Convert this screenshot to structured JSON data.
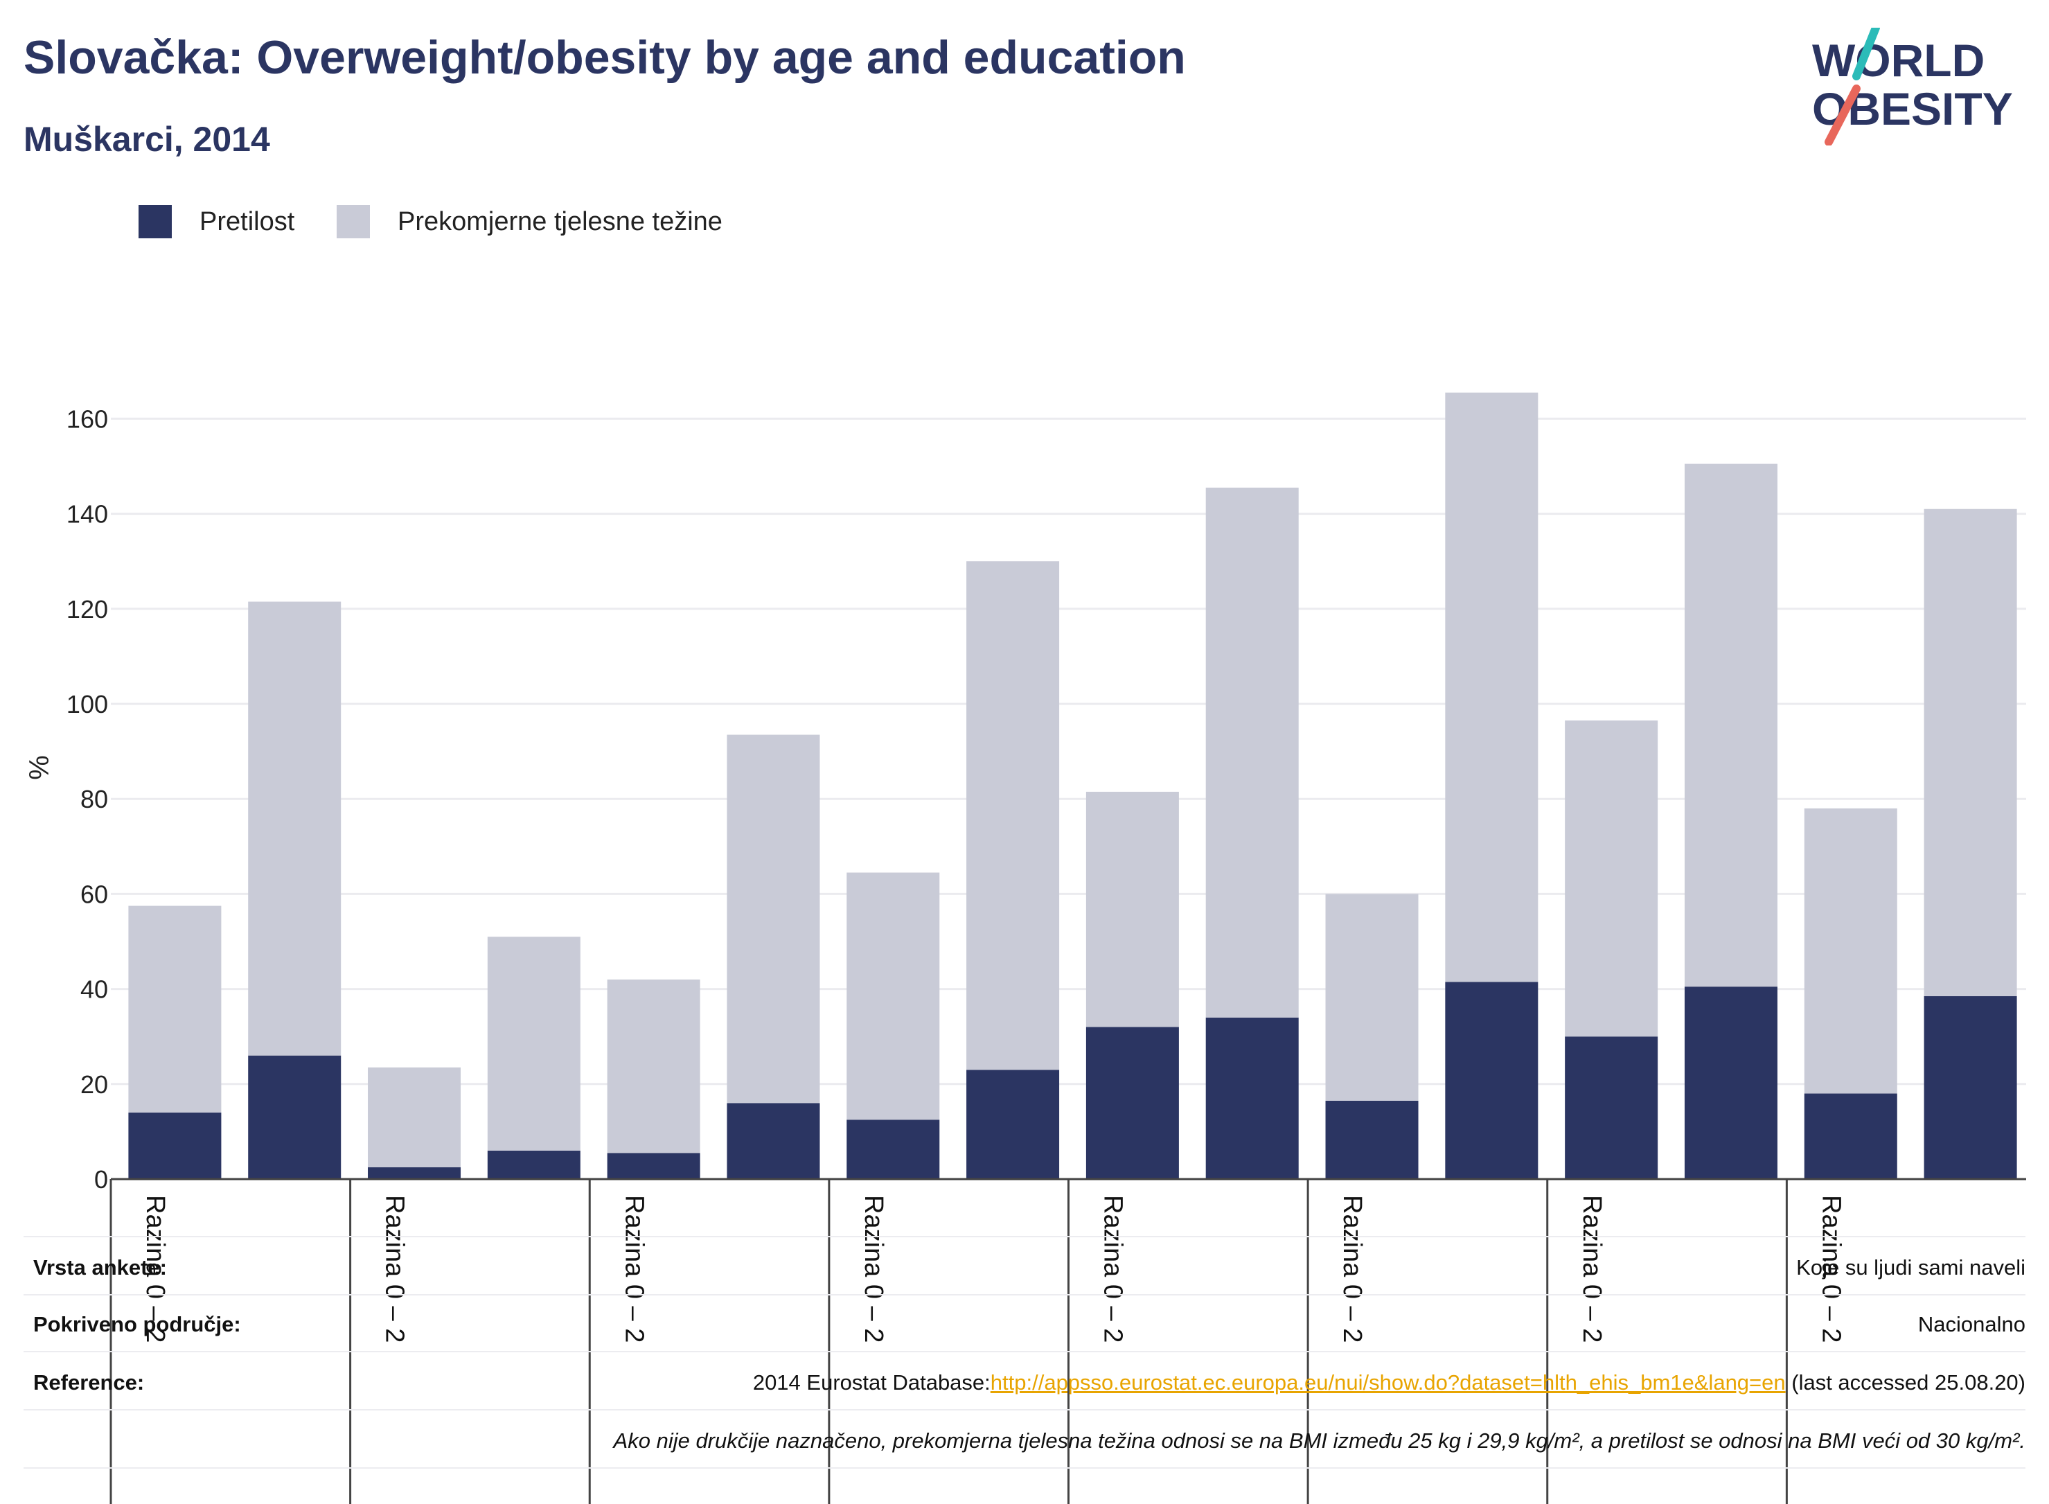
{
  "header": {
    "title": "Slovačka: Overweight/obesity by age and education",
    "subtitle": "Muškarci, 2014"
  },
  "logo": {
    "line1": "WORLD",
    "line2": "OBESITY",
    "accent_colors": [
      "#2bbbb8",
      "#e8675b"
    ]
  },
  "legend": [
    {
      "label": "Pretilost",
      "color": "#2b3562"
    },
    {
      "label": "Prekomjerne tjelesne težine",
      "color": "#c9cbd7"
    }
  ],
  "chart_data": {
    "type": "bar",
    "stacked": true,
    "ylabel": "%",
    "ylim": [
      0,
      170
    ],
    "yticks": [
      0,
      20,
      40,
      60,
      80,
      100,
      120,
      140,
      160
    ],
    "grid": true,
    "legend_position": "top-left",
    "group_labels": [
      "Razina 0 – 2",
      "Razina 0 – 2",
      "Razina 0 – 2",
      "Razina 0 – 2",
      "Razina 0 – 2",
      "Razina 0 – 2",
      "Razina 0 – 2",
      "Razina 0 – 2"
    ],
    "series": [
      {
        "name": "Pretilost",
        "color": "#2b3562",
        "values": [
          14,
          26,
          2.5,
          6,
          5.5,
          16,
          12.5,
          23,
          32,
          34,
          16.5,
          41.5,
          30,
          40.5,
          18,
          38.5
        ]
      },
      {
        "name": "Prekomjerne tjelesne težine",
        "color": "#c9cbd7",
        "values": [
          43.5,
          95.5,
          21,
          45,
          36.5,
          77.5,
          52,
          107,
          49.5,
          111.5,
          43.5,
          124,
          66.5,
          110,
          60,
          102.5
        ]
      }
    ]
  },
  "footer": {
    "survey_label": "Vrsta ankete:",
    "survey_value": "Koje su ljudi sami naveli",
    "area_label": "Pokriveno područje:",
    "area_value": "Nacionalno",
    "ref_label": "Reference:",
    "ref_prefix": "2014 Eurostat Database:",
    "ref_link": "http://appsso.eurostat.ec.europa.eu/nui/show.do?dataset=hlth_ehis_bm1e&lang=en",
    "ref_suffix": " (last accessed 25.08.20)",
    "note": "Ako nije drukčije naznačeno, prekomjerna tjelesna težina odnosi se na BMI između 25 kg i 29,9 kg/m², a pretilost se odnosi na BMI veći od 30 kg/m²."
  }
}
